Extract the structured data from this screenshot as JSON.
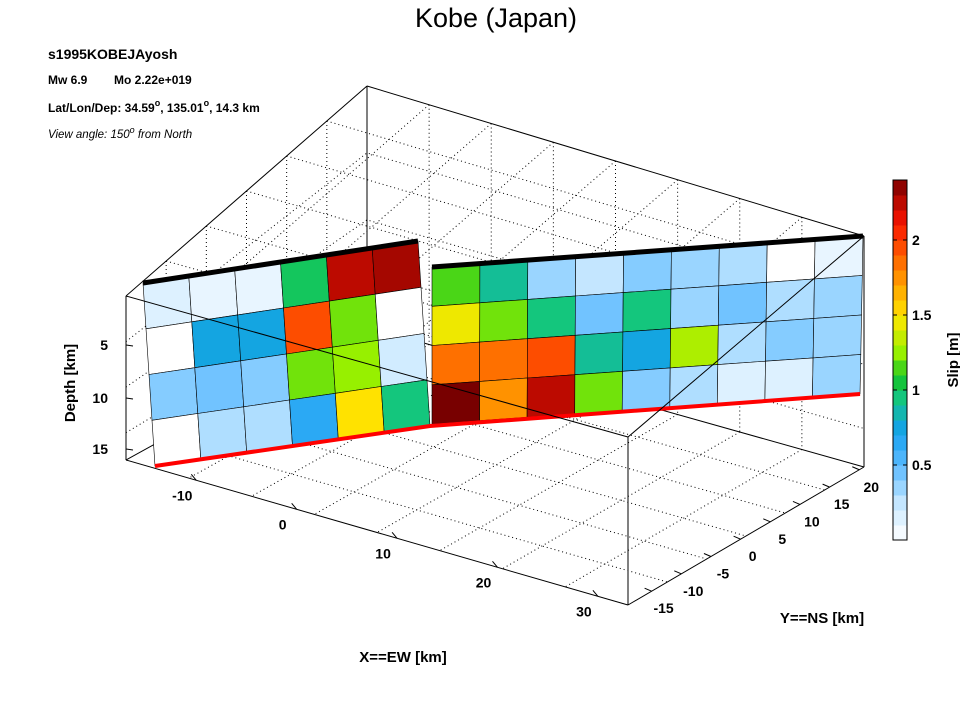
{
  "chart_data": {
    "type": "heatmap",
    "title": "Kobe (Japan)",
    "event_id": "s1995KOBEJAyosh",
    "mw_label": "Mw 6.9",
    "mo_label": "Mo 2.22e+019",
    "loc_prefix": "Lat/Lon/Dep: ",
    "lat": "34.59",
    "lon": "135.01",
    "dep": ", 14.3 km",
    "deg": "o",
    "view_prefix": "View angle: 150",
    "view_suffix": " from North",
    "xlabel": "X==EW [km]",
    "ylabel": "Y==NS [km]",
    "zlabel": "Depth [km]",
    "colorbar_label": "Slip [m]",
    "x_ticks": [
      "-10",
      "0",
      "10",
      "20",
      "30"
    ],
    "y_ticks": [
      "-15",
      "-10",
      "-5",
      "0",
      "5",
      "10",
      "15",
      "20"
    ],
    "z_ticks": [
      "5",
      "10",
      "15"
    ],
    "colorbar_ticks": [
      "0.5",
      "1",
      "1.5",
      "2"
    ],
    "colorbar_range": [
      0,
      2.4
    ],
    "colormap": "jet-white",
    "segment1_slip": [
      [
        0.15,
        0.1,
        0.1,
        1.0,
        2.25,
        2.3
      ],
      [
        0.0,
        0.75,
        0.75,
        1.95,
        1.2,
        0.0
      ],
      [
        0.4,
        0.45,
        0.4,
        1.2,
        1.25,
        0.2
      ],
      [
        0.0,
        0.3,
        0.3,
        0.65,
        1.5,
        0.95
      ]
    ],
    "segment2_slip": [
      [
        1.15,
        0.9,
        0.35,
        0.25,
        0.4,
        0.35,
        0.3,
        0.0,
        0.1
      ],
      [
        1.45,
        1.2,
        0.95,
        0.45,
        0.95,
        0.35,
        0.45,
        0.3,
        0.35
      ],
      [
        1.85,
        1.85,
        1.95,
        0.9,
        0.75,
        1.3,
        0.3,
        0.4,
        0.35
      ],
      [
        2.4,
        1.75,
        2.25,
        1.2,
        0.4,
        0.3,
        0.15,
        0.15,
        0.35
      ]
    ],
    "top_edge_color": "#000000",
    "bottom_edge_color": "#ff0000"
  }
}
